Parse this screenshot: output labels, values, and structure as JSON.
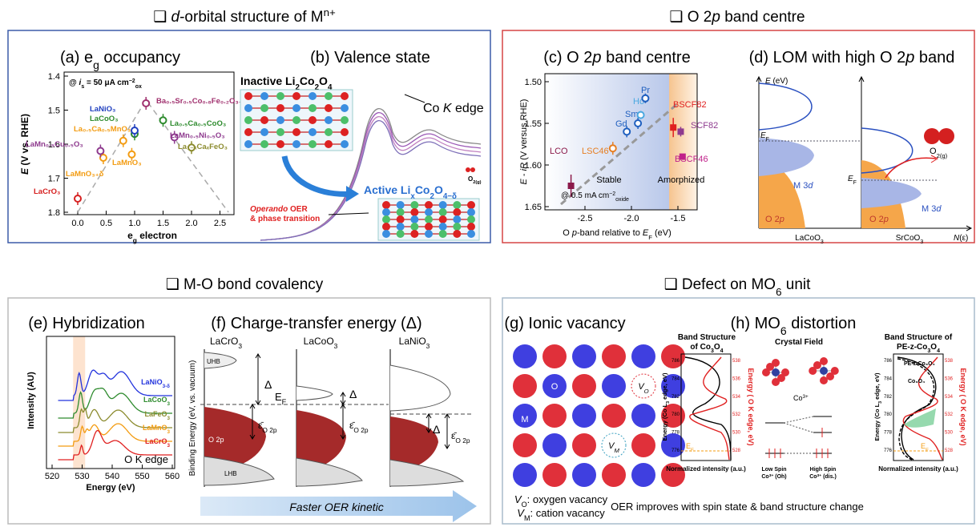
{
  "headings": {
    "d_orbital": [
      "❑ ",
      "d",
      "-orbital structure of M",
      "n+"
    ],
    "o2p": [
      "❑ O 2",
      "p",
      " band centre"
    ],
    "covalency": "❑ M-O bond covalency",
    "defect": [
      "❑ Defect on MO",
      "6",
      " unit"
    ]
  },
  "panel_a": {
    "title": [
      "(a) e",
      "g",
      " occupancy"
    ],
    "y_label": [
      "E",
      " (V vs. RHE)"
    ],
    "x_label": [
      "e",
      "g",
      " electron"
    ],
    "yticks": [
      "1.4",
      "1.5",
      "1.6",
      "1.7",
      "1.8"
    ],
    "xticks": [
      "0.0",
      "0.5",
      "1.0",
      "1.5",
      "2.0",
      "2.5"
    ],
    "condition": [
      "@ ",
      "i",
      "s",
      " = 50 μA cm",
      "−2",
      "ox"
    ],
    "materials": [
      "LaCrO₃",
      "LaMnO₃₊δ",
      "LaMn₀.₅Cu₀.₅O₃",
      "La₀.₅Ca₀.₅MnO₃",
      "LaMnO₃",
      "LaCoO₃",
      "LaNiO₃",
      "Ba₀.₅Sr₀.₅Co₀.₈Fe₀.₂O₃₋δ",
      "La₀.₅Ca₀.₅CoO₃",
      "LaMn₀.₅Ni₀.₅O₃",
      "La₁₋ₓCaₓFeO₃"
    ]
  },
  "panel_b": {
    "title": "(b) Valence state",
    "inactive": [
      "Inactive Li",
      "2",
      "Co",
      "2",
      "O",
      "4"
    ],
    "edge": [
      "Co ",
      "K",
      " edge"
    ],
    "active": [
      "Active Li",
      "x",
      "Co",
      "2",
      "O",
      "4−δ"
    ],
    "gas": [
      "O",
      "2(g)"
    ],
    "operando": [
      "Operando",
      " OER"
    ],
    "transition": "& phase transition"
  },
  "panel_c": {
    "title": [
      "(c) O 2",
      "p",
      " band centre"
    ],
    "y_label": [
      "E",
      " - ",
      "iR",
      " (V versus RHE)"
    ],
    "x_label": [
      "O ",
      "p",
      "-band relative to ",
      "E",
      "F",
      " (eV)"
    ],
    "yticks": [
      "1.50",
      "1.55",
      "1.60",
      "1.65"
    ],
    "xticks": [
      "-2.5",
      "-2.0",
      "-1.5"
    ],
    "samples": [
      "LCO",
      "LSC46",
      "Gd",
      "Sm",
      "Ho",
      "Pr",
      "BSCF82",
      "SCF82",
      "BSCF46"
    ],
    "stable": "Stable",
    "amorphized": "Amorphized",
    "condition": [
      "@ 0.5 mA cm",
      "−2",
      "oxide"
    ]
  },
  "panel_d": {
    "title": [
      "(d) LOM with high O 2",
      "p",
      " band"
    ],
    "y_label": [
      "E",
      " (eV)"
    ],
    "fermi_1": [
      "E",
      "F"
    ],
    "fermi_2": [
      "E",
      "F"
    ],
    "m3d_1": [
      "M 3",
      "d"
    ],
    "m3d_2": [
      "M 3",
      "d"
    ],
    "o2p_1": [
      "O 2",
      "p"
    ],
    "o2p_2": [
      "O 2",
      "p"
    ],
    "lacoo3": [
      "LaCoO",
      "3"
    ],
    "srcoo3": [
      "SrCoO",
      "3"
    ],
    "x_label": [
      "N",
      "(ε)"
    ],
    "gas": [
      "O",
      "2(g)"
    ]
  },
  "panel_e": {
    "title": "(e) Hybridization",
    "y_label": "Intensity (AU)",
    "x_label": "Energy (eV)",
    "xticks": [
      "520",
      "530",
      "540",
      "550",
      "560"
    ],
    "samples": [
      [
        "LaNiO",
        "3-δ"
      ],
      [
        "LaCoO",
        "3"
      ],
      [
        "LaFeO",
        "3"
      ],
      [
        "LaMnO",
        "3"
      ],
      [
        "LaCrO",
        "3"
      ]
    ],
    "edge": "O K edge"
  },
  "panel_f": {
    "title": "(f) Charge-transfer energy (Δ)",
    "columns": [
      [
        "LaCrO",
        "3"
      ],
      [
        "LaCoO",
        "3"
      ],
      [
        "LaNiO",
        "3"
      ]
    ],
    "uhb": "UHB",
    "lhb": "LHB",
    "o2p": "O 2p",
    "deltas": [
      "Δ",
      "Δ",
      "Δ"
    ],
    "fermi": [
      "E",
      "F"
    ],
    "band_centres": [
      [
        "ε̄",
        "O 2p"
      ],
      [
        "ε̄",
        "O 2p"
      ],
      [
        "ε̄",
        "O 2p"
      ]
    ],
    "y_label": "Binding Energy (eV, vs. vacuum)",
    "arrow": "Faster OER kinetic"
  },
  "panel_g": {
    "title": "(g) Ionic vacancy",
    "metal": "M",
    "oxygen": "O",
    "vo": [
      "V",
      "O"
    ],
    "vm": [
      "V",
      "M"
    ],
    "legend_o": [
      "V",
      "O",
      ": oxygen vacancy"
    ],
    "legend_m": [
      "V",
      "M",
      ": cation vacancy"
    ]
  },
  "panel_h": {
    "title": [
      "(h) MO",
      "6",
      " distortion"
    ],
    "left_title_1": "Band Structure",
    "left_title_2": [
      "of Co",
      "3",
      "O",
      "4"
    ],
    "crystal_field": "Crystal Field",
    "ion": [
      "Co",
      "3+"
    ],
    "right_title_1": "Band Structure of",
    "right_title_2": [
      "PE-z-Co",
      "3",
      "O",
      "4"
    ],
    "plot1": {
      "y_left": [
        "Energy (Co L",
        "3",
        " edge, eV)"
      ],
      "y_right": "Energy ( O K edge, eV)",
      "x_label": "Normalized intensity (a.u.)",
      "left_ticks": [
        "786",
        "784",
        "782",
        "780",
        "778",
        "776"
      ],
      "right_ticks": [
        "538",
        "536",
        "534",
        "532",
        "530",
        "528"
      ],
      "fermi": [
        "E",
        "F"
      ]
    },
    "plot2": {
      "y_left": [
        "Energy (Co L",
        "3",
        " edge, eV)"
      ],
      "y_right": "Energy ( O K edge, eV)",
      "x_label": "Normalized intensity (a.u.)",
      "left_ticks": [
        "786",
        "784",
        "782",
        "780",
        "778",
        "776"
      ],
      "right_ticks": [
        "538",
        "536",
        "534",
        "532",
        "530",
        "528"
      ],
      "fermi": [
        "E",
        "F"
      ]
    },
    "legend": [
      "PE-z-Co₃O₄",
      "Co₃O₄"
    ],
    "low_spin_1": "Low Spin",
    "low_spin_2": [
      "Co",
      "3+",
      " (Oh)"
    ],
    "high_spin_1": "High Spin",
    "high_spin_2": [
      "Co",
      "3+",
      " (dis.)"
    ],
    "caption": "OER improves with spin state & band structure change"
  }
}
